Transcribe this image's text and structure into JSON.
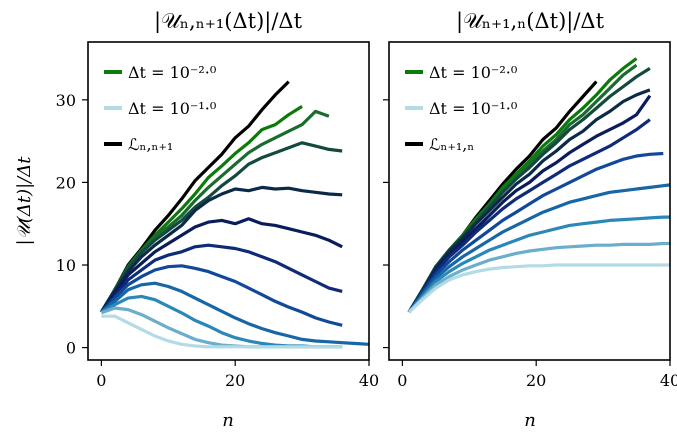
{
  "chart_data": [
    {
      "type": "line",
      "title": "|𝒰ₙ,ₙ₊₁(Δt)|/Δt",
      "xlabel": "n",
      "ylabel": "|𝒰(Δt)|/Δt",
      "xlim": [
        -2,
        40
      ],
      "ylim": [
        -1.5,
        37
      ],
      "xticks": [
        "0",
        "20",
        "40"
      ],
      "yticks": [
        "0",
        "10",
        "20",
        "30"
      ],
      "legend_position": "top-left",
      "legend": [
        {
          "label": "Δt = 10⁻²·⁰",
          "color": "#0b7a0b"
        },
        {
          "label": "Δt = 10⁻¹·⁰",
          "color": "#b3dbe6"
        },
        {
          "label": "ℒₙ,ₙ₊₁",
          "color": "#000000"
        }
      ],
      "grid": false,
      "series": [
        {
          "color": "#000000",
          "x": [
            0,
            2,
            4,
            6,
            8,
            10,
            12,
            14,
            16,
            18,
            20,
            22,
            24,
            26,
            28
          ],
          "y": [
            4.3,
            7.0,
            10.0,
            12.0,
            14.2,
            16.0,
            18.0,
            20.2,
            21.8,
            23.4,
            25.4,
            26.8,
            28.8,
            30.6,
            32.2
          ]
        },
        {
          "color": "#0b7a0b",
          "x": [
            0,
            2,
            4,
            6,
            8,
            10,
            12,
            14,
            16,
            18,
            20,
            22,
            24,
            26,
            28,
            30
          ],
          "y": [
            4.3,
            7.0,
            9.8,
            11.8,
            13.6,
            15.2,
            16.8,
            18.6,
            20.6,
            22.0,
            23.5,
            24.8,
            26.4,
            27.0,
            28.2,
            29.2
          ]
        },
        {
          "color": "#1a6b2e",
          "x": [
            0,
            2,
            4,
            6,
            8,
            10,
            12,
            14,
            16,
            18,
            20,
            22,
            24,
            26,
            28,
            30,
            32,
            34
          ],
          "y": [
            4.3,
            7.0,
            9.8,
            11.8,
            13.4,
            14.6,
            16.0,
            17.8,
            19.4,
            20.8,
            22.2,
            23.6,
            24.6,
            25.4,
            26.2,
            27.0,
            28.6,
            28.0
          ]
        },
        {
          "color": "#124a3d",
          "x": [
            0,
            2,
            4,
            6,
            8,
            10,
            12,
            14,
            16,
            18,
            20,
            22,
            24,
            26,
            28,
            30,
            32,
            34,
            36
          ],
          "y": [
            4.3,
            7.0,
            9.6,
            11.5,
            13.0,
            14.2,
            15.4,
            17.0,
            18.2,
            19.6,
            20.8,
            22.2,
            23.0,
            23.6,
            24.2,
            24.8,
            24.4,
            24.0,
            23.8
          ]
        },
        {
          "color": "#0b2a4a",
          "x": [
            0,
            2,
            4,
            6,
            8,
            10,
            12,
            14,
            16,
            18,
            20,
            22,
            24,
            26,
            28,
            30,
            32,
            34,
            36
          ],
          "y": [
            4.3,
            6.8,
            9.2,
            11.0,
            12.4,
            13.6,
            14.8,
            16.6,
            17.8,
            18.6,
            19.2,
            19.0,
            19.4,
            19.2,
            19.3,
            19.0,
            18.8,
            18.6,
            18.5
          ]
        },
        {
          "color": "#0a1c5a",
          "x": [
            0,
            2,
            4,
            6,
            8,
            10,
            12,
            14,
            16,
            18,
            20,
            22,
            24,
            26,
            28,
            30,
            32,
            34,
            36
          ],
          "y": [
            4.3,
            6.6,
            8.8,
            10.2,
            11.6,
            12.6,
            13.6,
            14.6,
            15.2,
            15.4,
            15.0,
            15.6,
            15.0,
            14.8,
            14.4,
            14.0,
            13.6,
            13.0,
            12.2
          ]
        },
        {
          "color": "#0e2a78",
          "x": [
            0,
            2,
            4,
            6,
            8,
            10,
            12,
            14,
            16,
            18,
            20,
            22,
            24,
            26,
            28,
            30,
            32,
            34,
            36
          ],
          "y": [
            4.3,
            6.2,
            8.2,
            9.4,
            10.6,
            11.2,
            11.6,
            12.2,
            12.4,
            12.2,
            12.0,
            11.6,
            11.0,
            10.4,
            9.6,
            8.8,
            8.0,
            7.2,
            6.8
          ]
        },
        {
          "color": "#10499b",
          "x": [
            0,
            2,
            4,
            6,
            8,
            10,
            12,
            14,
            16,
            18,
            20,
            22,
            24,
            26,
            28,
            30,
            32,
            34,
            36
          ],
          "y": [
            4.3,
            6.0,
            7.6,
            8.6,
            9.4,
            9.8,
            9.9,
            9.6,
            9.2,
            8.6,
            8.0,
            7.2,
            6.4,
            5.6,
            4.9,
            4.3,
            3.6,
            3.1,
            2.7
          ]
        },
        {
          "color": "#1766a6",
          "x": [
            0,
            2,
            4,
            6,
            8,
            10,
            12,
            14,
            16,
            18,
            20,
            22,
            24,
            26,
            28,
            30,
            32,
            34,
            36,
            38,
            40
          ],
          "y": [
            4.3,
            5.6,
            7.0,
            7.6,
            7.8,
            7.4,
            6.8,
            6.0,
            5.2,
            4.4,
            3.6,
            2.9,
            2.3,
            1.8,
            1.4,
            1.0,
            0.8,
            0.7,
            0.6,
            0.5,
            0.4
          ]
        },
        {
          "color": "#2a88b8",
          "x": [
            0,
            2,
            4,
            6,
            8,
            10,
            12,
            14,
            16,
            18,
            20,
            22,
            24,
            26,
            28,
            30,
            32,
            34,
            36
          ],
          "y": [
            4.3,
            5.2,
            6.0,
            6.2,
            5.8,
            5.0,
            4.2,
            3.3,
            2.6,
            1.8,
            1.2,
            0.8,
            0.5,
            0.3,
            0.2,
            0.2,
            0.1,
            0.1,
            0.1
          ]
        },
        {
          "color": "#6aaecc",
          "x": [
            0,
            2,
            4,
            6,
            8,
            10,
            12,
            14,
            16,
            18,
            20,
            22,
            24,
            26,
            28,
            30,
            32,
            34,
            36
          ],
          "y": [
            4.2,
            4.8,
            4.6,
            4.0,
            3.2,
            2.4,
            1.7,
            1.0,
            0.6,
            0.3,
            0.2,
            0.1,
            0.1,
            0.1,
            0.1,
            0.1,
            0.1,
            0.1,
            0.1
          ]
        },
        {
          "color": "#b3dbe6",
          "x": [
            0,
            2,
            4,
            6,
            8,
            10,
            12,
            14,
            16,
            18,
            20,
            22,
            24,
            26,
            28,
            30,
            32,
            34,
            36
          ],
          "y": [
            3.8,
            3.8,
            3.0,
            2.2,
            1.4,
            0.8,
            0.4,
            0.2,
            0.1,
            0.1,
            0.1,
            0.1,
            0.1,
            0.1,
            0.1,
            0.1,
            0.1,
            0.1,
            0.1
          ]
        }
      ]
    },
    {
      "type": "line",
      "title": "|𝒰ₙ₊₁,ₙ(Δt)|/Δt",
      "xlabel": "n",
      "xlim": [
        -2,
        40
      ],
      "ylim": [
        -1.5,
        37
      ],
      "xticks": [
        "0",
        "20",
        "40"
      ],
      "legend_position": "top-left",
      "legend": [
        {
          "label": "Δt = 10⁻²·⁰",
          "color": "#0b7a0b"
        },
        {
          "label": "Δt = 10⁻¹·⁰",
          "color": "#b3dbe6"
        },
        {
          "label": "ℒₙ₊₁,ₙ",
          "color": "#000000"
        }
      ],
      "grid": false,
      "series": [
        {
          "color": "#000000",
          "x": [
            1,
            3,
            5,
            7,
            9,
            11,
            13,
            15,
            17,
            19,
            21,
            23,
            25,
            27,
            29
          ],
          "y": [
            4.3,
            7.0,
            9.8,
            11.8,
            13.6,
            15.8,
            17.8,
            19.8,
            21.6,
            23.2,
            25.2,
            26.6,
            28.6,
            30.4,
            32.2
          ]
        },
        {
          "color": "#0b7a0b",
          "x": [
            1,
            3,
            5,
            7,
            9,
            11,
            13,
            15,
            17,
            19,
            21,
            23,
            25,
            27,
            29,
            31,
            33,
            35
          ],
          "y": [
            4.3,
            7.0,
            9.8,
            11.8,
            13.6,
            15.6,
            17.4,
            19.4,
            21.0,
            22.6,
            24.4,
            25.8,
            27.6,
            29.0,
            30.6,
            32.4,
            33.8,
            35.0
          ]
        },
        {
          "color": "#1a6b2e",
          "x": [
            1,
            3,
            5,
            7,
            9,
            11,
            13,
            15,
            17,
            19,
            21,
            23,
            25,
            27,
            29,
            31,
            33,
            35
          ],
          "y": [
            4.3,
            7.0,
            9.8,
            11.8,
            13.4,
            15.4,
            17.2,
            19.0,
            20.6,
            22.2,
            23.8,
            25.2,
            27.0,
            28.2,
            29.8,
            31.4,
            33.0,
            34.2
          ]
        },
        {
          "color": "#124a3d",
          "x": [
            1,
            3,
            5,
            7,
            9,
            11,
            13,
            15,
            17,
            19,
            21,
            23,
            25,
            27,
            29,
            31,
            33,
            35,
            37
          ],
          "y": [
            4.3,
            7.0,
            9.8,
            11.8,
            13.4,
            15.2,
            17.0,
            18.8,
            20.4,
            21.8,
            23.4,
            24.8,
            26.4,
            27.6,
            29.0,
            30.4,
            31.6,
            32.8,
            33.8
          ]
        },
        {
          "color": "#0b2a4a",
          "x": [
            1,
            3,
            5,
            7,
            9,
            11,
            13,
            15,
            17,
            19,
            21,
            23,
            25,
            27,
            29,
            31,
            33,
            35,
            37
          ],
          "y": [
            4.3,
            6.8,
            9.6,
            11.6,
            13.2,
            15.0,
            16.6,
            18.2,
            19.8,
            21.0,
            22.6,
            23.8,
            25.2,
            26.2,
            27.6,
            28.6,
            29.8,
            30.6,
            31.2
          ]
        },
        {
          "color": "#0a1c5a",
          "x": [
            1,
            3,
            5,
            7,
            9,
            11,
            13,
            15,
            17,
            19,
            21,
            23,
            25,
            27,
            29,
            31,
            33,
            35,
            37
          ],
          "y": [
            4.3,
            6.8,
            9.4,
            11.2,
            12.8,
            14.4,
            16.0,
            17.6,
            19.0,
            20.0,
            21.4,
            22.4,
            23.6,
            24.6,
            25.6,
            26.4,
            27.2,
            28.2,
            30.5
          ]
        },
        {
          "color": "#0e2a78",
          "x": [
            1,
            3,
            5,
            7,
            9,
            11,
            13,
            15,
            17,
            19,
            21,
            23,
            25,
            27,
            29,
            31,
            33,
            35,
            37
          ],
          "y": [
            4.3,
            6.8,
            9.2,
            11.0,
            12.4,
            14.0,
            15.4,
            16.8,
            18.0,
            19.0,
            20.0,
            21.0,
            22.0,
            22.8,
            23.6,
            24.4,
            25.4,
            26.4,
            27.6
          ]
        },
        {
          "color": "#10499b",
          "x": [
            1,
            3,
            5,
            7,
            9,
            11,
            13,
            15,
            17,
            19,
            21,
            23,
            25,
            27,
            29,
            31,
            33,
            35,
            37,
            39
          ],
          "y": [
            4.3,
            6.6,
            8.8,
            10.4,
            11.8,
            13.0,
            14.2,
            15.4,
            16.4,
            17.4,
            18.4,
            19.2,
            20.0,
            20.8,
            21.6,
            22.2,
            22.8,
            23.2,
            23.4,
            23.5
          ]
        },
        {
          "color": "#1766a6",
          "x": [
            1,
            3,
            5,
            7,
            9,
            11,
            13,
            15,
            17,
            19,
            21,
            23,
            25,
            27,
            29,
            31,
            33,
            35,
            37,
            39,
            41
          ],
          "y": [
            4.3,
            6.4,
            8.4,
            9.8,
            11.0,
            12.0,
            13.0,
            14.0,
            14.8,
            15.6,
            16.4,
            17.0,
            17.6,
            18.0,
            18.4,
            18.8,
            19.0,
            19.2,
            19.4,
            19.6,
            19.7
          ]
        },
        {
          "color": "#2a88b8",
          "x": [
            1,
            3,
            5,
            7,
            9,
            11,
            13,
            15,
            17,
            19,
            21,
            23,
            25,
            27,
            29,
            31,
            33,
            35,
            37,
            39,
            41
          ],
          "y": [
            4.3,
            6.2,
            8.0,
            9.2,
            10.2,
            11.0,
            11.8,
            12.4,
            13.0,
            13.6,
            14.0,
            14.4,
            14.8,
            15.0,
            15.2,
            15.4,
            15.5,
            15.6,
            15.7,
            15.8,
            15.8
          ]
        },
        {
          "color": "#6aaecc",
          "x": [
            1,
            3,
            5,
            7,
            9,
            11,
            13,
            15,
            17,
            19,
            21,
            23,
            25,
            27,
            29,
            31,
            33,
            35,
            37,
            39,
            41
          ],
          "y": [
            4.3,
            6.0,
            7.6,
            8.6,
            9.4,
            10.0,
            10.6,
            11.0,
            11.4,
            11.7,
            11.9,
            12.1,
            12.2,
            12.3,
            12.4,
            12.4,
            12.5,
            12.5,
            12.5,
            12.6,
            12.6
          ]
        },
        {
          "color": "#b3dbe6",
          "x": [
            1,
            3,
            5,
            7,
            9,
            11,
            13,
            15,
            17,
            19,
            21,
            23,
            25,
            27,
            29,
            31,
            33,
            35,
            37,
            39,
            41
          ],
          "y": [
            4.3,
            5.8,
            7.2,
            8.2,
            8.8,
            9.2,
            9.5,
            9.7,
            9.8,
            9.9,
            9.9,
            10.0,
            10.0,
            10.0,
            10.0,
            10.0,
            10.0,
            10.0,
            10.0,
            10.0,
            10.0
          ]
        }
      ]
    }
  ]
}
